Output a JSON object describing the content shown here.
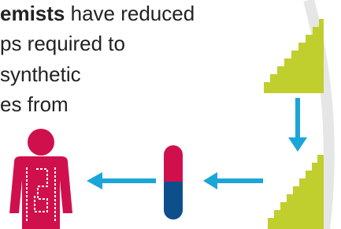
{
  "text": {
    "lines": [
      {
        "bold": "emists",
        "rest": " have reduced"
      },
      {
        "rest": "ps required to"
      },
      {
        "rest": "synthetic"
      },
      {
        "rest": "es from"
      }
    ]
  }
}
